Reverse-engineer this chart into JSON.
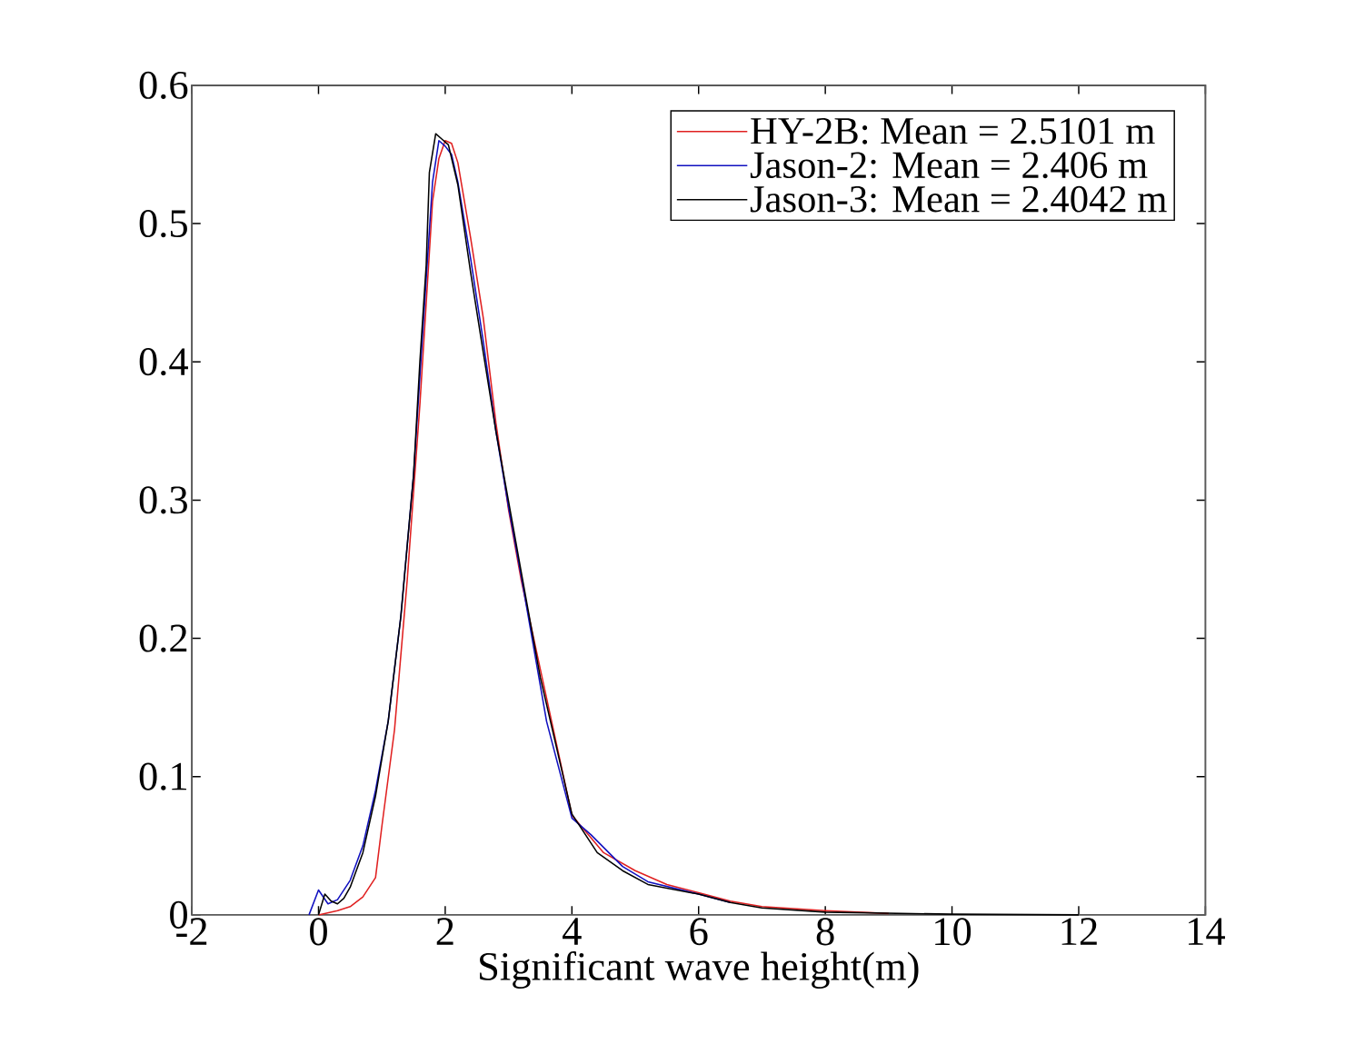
{
  "chart_data": {
    "type": "line",
    "xlabel": "Significant wave height(m)",
    "xlim": [
      -2,
      14
    ],
    "xticks": [
      -2,
      0,
      2,
      4,
      6,
      8,
      10,
      12,
      14
    ],
    "ylim": [
      0,
      0.6
    ],
    "yticks": [
      0,
      0.1,
      0.2,
      0.3,
      0.4,
      0.5,
      0.6
    ],
    "legend": "top right",
    "grid": false,
    "series": [
      {
        "name": "HY-2B: Mean = 2.5101 m",
        "color": "#e02020",
        "x": [
          0,
          0.3,
          0.5,
          0.7,
          0.9,
          1.0,
          1.2,
          1.4,
          1.6,
          1.8,
          1.9,
          2.0,
          2.1,
          2.2,
          2.4,
          2.6,
          2.8,
          3.0,
          3.2,
          3.5,
          4.0,
          4.5,
          5.0,
          5.5,
          6.0,
          6.5,
          7.0,
          8.0,
          9.0
        ],
        "values": [
          0,
          0.003,
          0.006,
          0.013,
          0.027,
          0.064,
          0.134,
          0.242,
          0.369,
          0.516,
          0.547,
          0.56,
          0.558,
          0.544,
          0.49,
          0.432,
          0.356,
          0.293,
          0.242,
          0.178,
          0.072,
          0.045,
          0.032,
          0.022,
          0.016,
          0.01,
          0.006,
          0.003,
          0.001
        ]
      },
      {
        "name": "Jason-2: Mean = 2.406 m",
        "color": "#1010c0",
        "x": [
          -0.15,
          0.0,
          0.15,
          0.3,
          0.5,
          0.7,
          0.9,
          1.1,
          1.3,
          1.5,
          1.7,
          1.8,
          1.9,
          2.0,
          2.1,
          2.2,
          2.4,
          2.6,
          2.8,
          3.0,
          3.2,
          3.6,
          4.0,
          4.3,
          4.8,
          5.2,
          6.0,
          6.5
        ],
        "values": [
          0,
          0.018,
          0.008,
          0.011,
          0.025,
          0.05,
          0.09,
          0.14,
          0.216,
          0.318,
          0.46,
          0.53,
          0.56,
          0.556,
          0.55,
          0.53,
          0.475,
          0.415,
          0.35,
          0.295,
          0.245,
          0.14,
          0.07,
          0.058,
          0.035,
          0.024,
          0.015,
          0.009
        ]
      },
      {
        "name": "Jason-3: Mean = 2.4042 m",
        "color": "#000000",
        "x": [
          0,
          0.1,
          0.2,
          0.3,
          0.4,
          0.5,
          0.7,
          0.9,
          1.1,
          1.3,
          1.5,
          1.6,
          1.7,
          1.75,
          1.85,
          1.95,
          2.05,
          2.2,
          2.4,
          2.6,
          2.8,
          3.0,
          3.2,
          3.5,
          4.0,
          4.4,
          4.8,
          5.2,
          6.0,
          6.5,
          7.0,
          8.0,
          10.0,
          12.0
        ],
        "values": [
          0,
          0.015,
          0.01,
          0.008,
          0.012,
          0.02,
          0.045,
          0.086,
          0.14,
          0.216,
          0.318,
          0.4,
          0.47,
          0.537,
          0.565,
          0.561,
          0.557,
          0.528,
          0.465,
          0.407,
          0.35,
          0.299,
          0.248,
          0.172,
          0.073,
          0.045,
          0.032,
          0.022,
          0.015,
          0.009,
          0.005,
          0.002,
          0.0005,
          0
        ]
      }
    ]
  }
}
